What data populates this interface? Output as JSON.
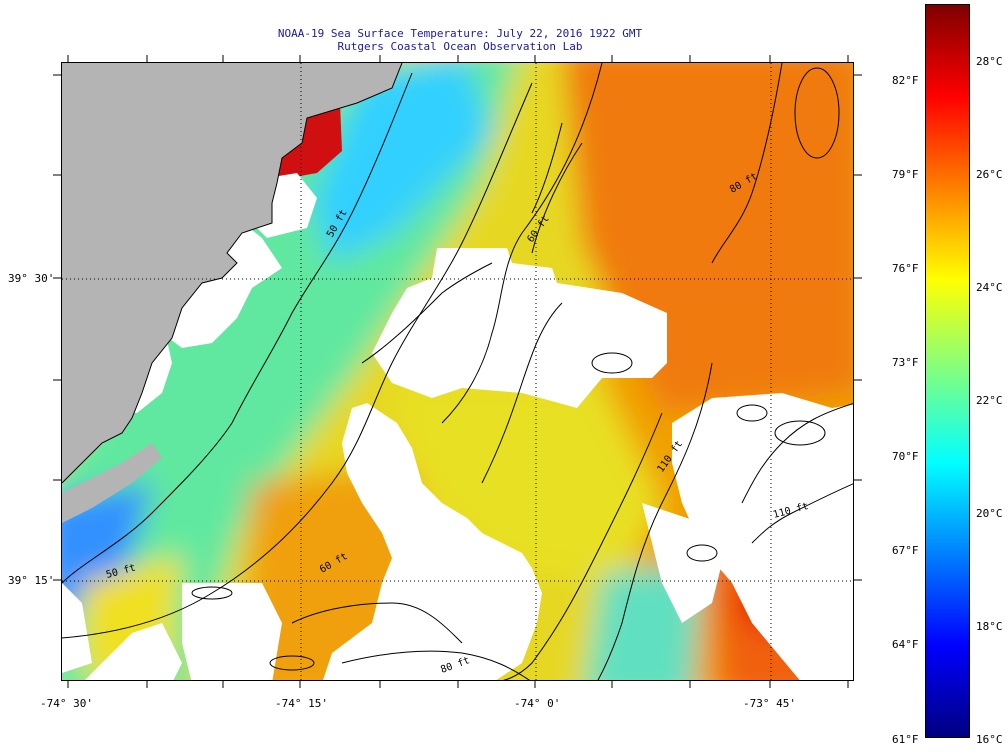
{
  "header": {
    "title": "NOAA-19 Sea Surface Temperature:  July 22, 2016 1922 GMT",
    "subtitle": "Rutgers Coastal Ocean Observation Lab"
  },
  "axes": {
    "latitude_labels": [
      "39° 30'",
      "39° 15'"
    ],
    "longitude_labels": [
      "-74° 30'",
      "-74° 15'",
      "-74° 0'",
      "-73° 45'"
    ]
  },
  "isobath_labels": [
    "50 ft",
    "60 ft",
    "80 ft",
    "110 ft",
    "50 ft",
    "60 ft",
    "80 ft",
    "110 ft"
  ],
  "colorbar": {
    "fahrenheit_labels": [
      "82°F",
      "79°F",
      "76°F",
      "73°F",
      "70°F",
      "67°F",
      "64°F",
      "61°F"
    ],
    "celsius_labels": [
      "28°C",
      "26°C",
      "24°C",
      "22°C",
      "20°C",
      "18°C",
      "16°C"
    ],
    "range_celsius": [
      16,
      29
    ],
    "colors": [
      "#00007f",
      "#0000ff",
      "#0080ff",
      "#00ffff",
      "#80ff80",
      "#ffff00",
      "#ff8000",
      "#ff0000",
      "#7f0000"
    ]
  },
  "colors": {
    "land": "#b4b4b4",
    "cloud": "#ffffff",
    "title_text": "#1a1aa0"
  }
}
